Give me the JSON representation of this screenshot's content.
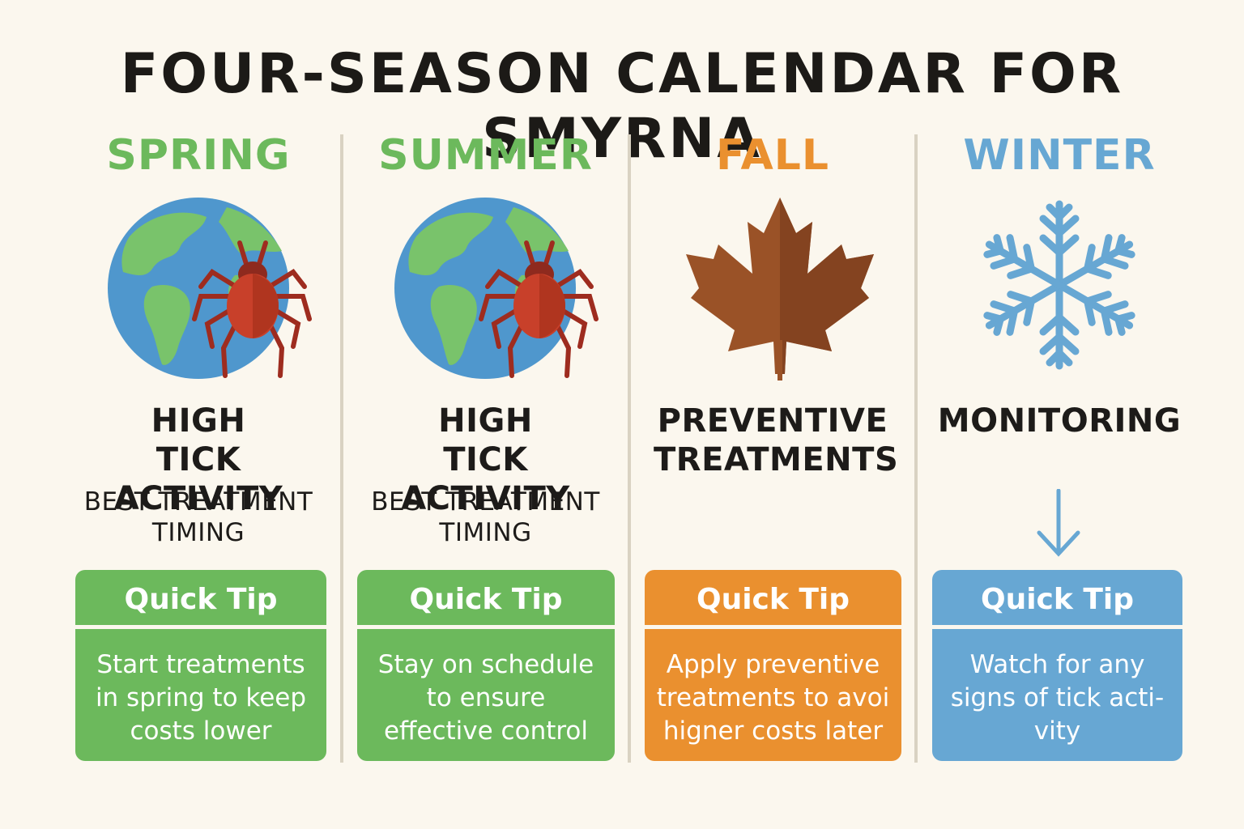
{
  "title": "FOUR-SEASON CALENDAR FOR SMYRNA",
  "colors": {
    "green": "#6cb95c",
    "orange": "#ea902f",
    "blue": "#67a7d3",
    "background": "#fbf7ee",
    "divider": "#d9d2c2"
  },
  "seasons": [
    {
      "name": "SPRING",
      "icon": "globe-with-tick-icon",
      "heading": "HIGH TICK ACTIVITY",
      "subheading": "BEST TREATMENT TIMING",
      "tip_title": "Quick Tip",
      "tip_text": "Start treatments in spring to keep costs lower"
    },
    {
      "name": "SUMMER",
      "icon": "globe-with-tick-icon",
      "heading": "HIGH TICK ACTIVITY",
      "subheading": "BEST TREATMENT TIMING",
      "tip_title": "Quick Tip",
      "tip_text": "Stay on schedule to ensure effective control"
    },
    {
      "name": "FALL",
      "icon": "maple-leaf-icon",
      "heading": "PREVENTIVE TREATMENTS",
      "subheading": "",
      "tip_title": "Quick Tip",
      "tip_text": "Apply preventive treatments to avoi higner costs later"
    },
    {
      "name": "WINTER",
      "icon": "snowflake-icon",
      "heading": "MONITORING",
      "subheading": "",
      "tip_title": "Quick Tip",
      "tip_text": "Watch for any signs of tick acti-vity"
    }
  ]
}
